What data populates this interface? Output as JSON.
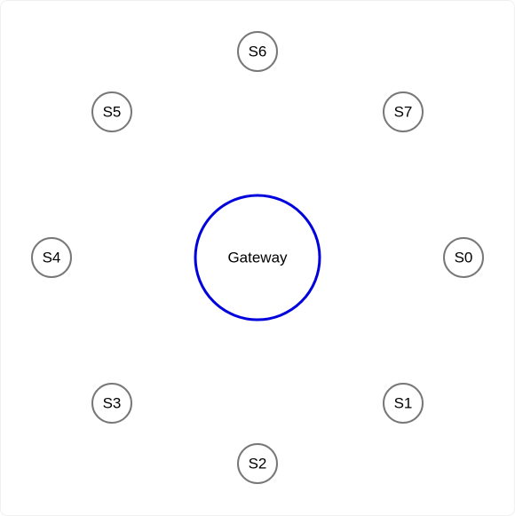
{
  "diagram": {
    "hub": {
      "label": "Gateway",
      "stroke": "#0000dd"
    },
    "satellites": [
      {
        "label": "S0"
      },
      {
        "label": "S1"
      },
      {
        "label": "S2"
      },
      {
        "label": "S3"
      },
      {
        "label": "S4"
      },
      {
        "label": "S5"
      },
      {
        "label": "S6"
      },
      {
        "label": "S7"
      }
    ],
    "satellite_stroke": "#777777"
  }
}
